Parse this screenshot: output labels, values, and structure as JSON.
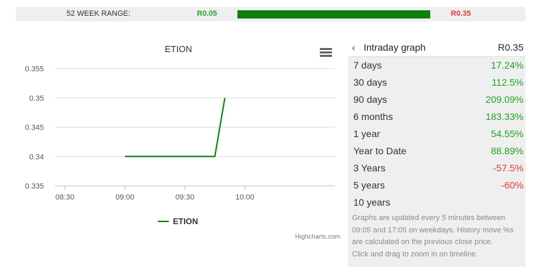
{
  "range": {
    "label": "52 WEEK RANGE:",
    "low": "R0.05",
    "high": "R0.35",
    "fill_fraction": 1.0
  },
  "chart_data": {
    "type": "line",
    "title": "ETION",
    "series": [
      {
        "name": "ETION",
        "color": "#0c7f0c",
        "x": [
          "09:00",
          "09:45",
          "09:50"
        ],
        "values": [
          0.34,
          0.34,
          0.35
        ]
      }
    ],
    "x_ticks": [
      "08:30",
      "09:00",
      "09:30",
      "10:00"
    ],
    "y_ticks": [
      "0.335",
      "0.34",
      "0.345",
      "0.35",
      "0.355"
    ],
    "xlim": [
      "08:25",
      "10:45"
    ],
    "ylim": [
      0.335,
      0.355
    ],
    "grid": "horizontal",
    "legend": "bottom-center",
    "credits": "Highcharts.com"
  },
  "panel": {
    "title": "Intraday graph",
    "price": "R0.35",
    "rows": [
      {
        "label": "7 days",
        "value": "17.24%",
        "trend": "pos"
      },
      {
        "label": "30 days",
        "value": "112.5%",
        "trend": "pos"
      },
      {
        "label": "90 days",
        "value": "209.09%",
        "trend": "pos"
      },
      {
        "label": "6 months",
        "value": "183.33%",
        "trend": "pos"
      },
      {
        "label": "1 year",
        "value": "54.55%",
        "trend": "pos"
      },
      {
        "label": "Year to Date",
        "value": "88.89%",
        "trend": "pos"
      },
      {
        "label": "3 Years",
        "value": "-57.5%",
        "trend": "neg"
      },
      {
        "label": "5 years",
        "value": "-60%",
        "trend": "neg"
      },
      {
        "label": "10 years",
        "value": "",
        "trend": "pos"
      }
    ],
    "note": [
      "Graphs are updated every 5 minutes between",
      "09:05 and 17:05 on weekdays. History move %s",
      "are calculated on the previous close price.",
      "Click and drag to zoom in on timeline."
    ]
  },
  "icons": {
    "menu": "hamburger-menu-icon",
    "back": "chevron-left-icon"
  }
}
